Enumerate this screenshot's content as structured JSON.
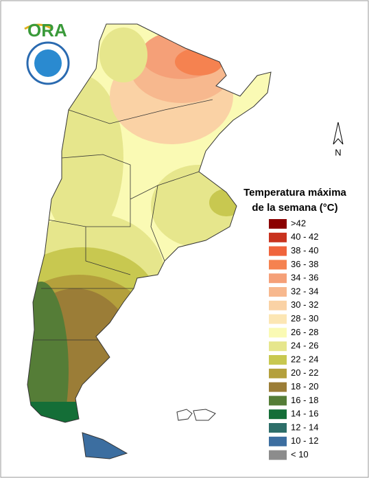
{
  "header": {
    "logo": "ORA"
  },
  "compass": {
    "label": "N"
  },
  "legend": {
    "title_lines": [
      "Temperatura máxima",
      "de la semana (°C)"
    ],
    "items": [
      {
        "label": ">42",
        "color": "#8b0000"
      },
      {
        "label": "40 - 42",
        "color": "#c8321e"
      },
      {
        "label": "38 - 40",
        "color": "#f0643c"
      },
      {
        "label": "36 - 38",
        "color": "#f58250"
      },
      {
        "label": "34 - 36",
        "color": "#f5a078"
      },
      {
        "label": "32 - 34",
        "color": "#f7b88e"
      },
      {
        "label": "30 - 32",
        "color": "#fad2a5"
      },
      {
        "label": "28 - 30",
        "color": "#fce6b4"
      },
      {
        "label": "26 - 28",
        "color": "#fafab4"
      },
      {
        "label": "24 - 26",
        "color": "#e6e68c"
      },
      {
        "label": "22 - 24",
        "color": "#c8c850"
      },
      {
        "label": "20 - 22",
        "color": "#b4a03c"
      },
      {
        "label": "18 - 20",
        "color": "#9b7d37"
      },
      {
        "label": "16 - 18",
        "color": "#557d37"
      },
      {
        "label": "14 - 16",
        "color": "#146e37"
      },
      {
        "label": "12 - 14",
        "color": "#2d6e69"
      },
      {
        "label": "10 - 12",
        "color": "#3c6ea0"
      },
      {
        "label": "< 10",
        "color": "#8c8c8c"
      }
    ]
  }
}
